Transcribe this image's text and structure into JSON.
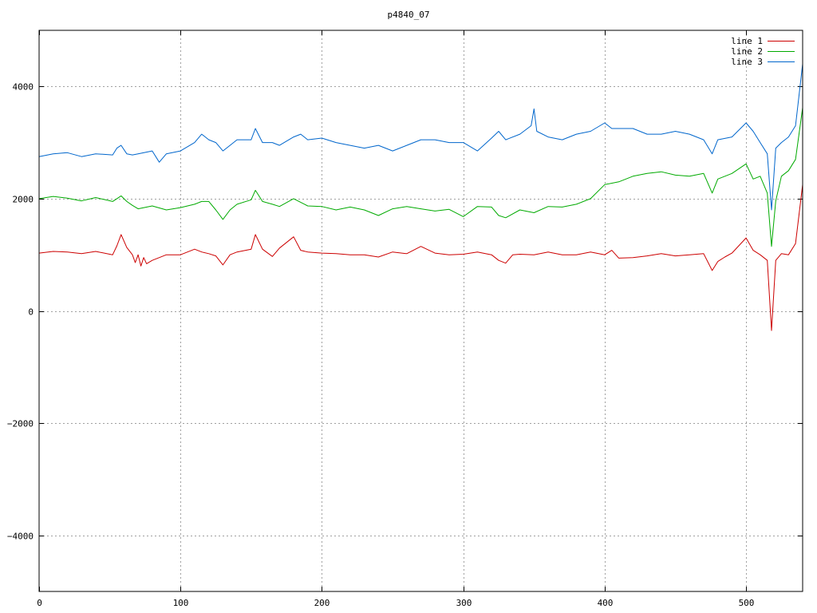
{
  "chart_data": {
    "type": "line",
    "title": "p4840_07",
    "xlabel": "",
    "ylabel": "",
    "xlim": [
      0,
      540
    ],
    "ylim": [
      -5000,
      5000
    ],
    "xticks": [
      0,
      100,
      200,
      300,
      400,
      500
    ],
    "yticks": [
      -4000,
      -2000,
      0,
      2000,
      4000
    ],
    "grid": true,
    "legend_position": "top-right",
    "series": [
      {
        "name": "line 1",
        "color": "#cc0000",
        "x": [
          0,
          10,
          20,
          30,
          40,
          52,
          55,
          58,
          62,
          66,
          68,
          70,
          72,
          74,
          76,
          80,
          90,
          100,
          110,
          115,
          120,
          125,
          130,
          135,
          140,
          150,
          153,
          158,
          165,
          170,
          180,
          185,
          190,
          200,
          210,
          220,
          230,
          240,
          250,
          260,
          270,
          280,
          290,
          300,
          310,
          320,
          325,
          330,
          335,
          340,
          350,
          360,
          370,
          380,
          390,
          400,
          405,
          410,
          420,
          430,
          440,
          450,
          460,
          470,
          476,
          480,
          485,
          490,
          500,
          505,
          510,
          515,
          518,
          521,
          525,
          530,
          535,
          540
        ],
        "y": [
          1030,
          1060,
          1050,
          1020,
          1060,
          1000,
          1160,
          1360,
          1130,
          1000,
          860,
          1000,
          800,
          950,
          840,
          900,
          1000,
          1000,
          1100,
          1050,
          1020,
          980,
          820,
          1000,
          1050,
          1100,
          1360,
          1100,
          970,
          1120,
          1320,
          1080,
          1050,
          1030,
          1020,
          1000,
          1000,
          960,
          1050,
          1020,
          1150,
          1030,
          1000,
          1010,
          1050,
          1000,
          900,
          850,
          1000,
          1010,
          1000,
          1050,
          1000,
          1000,
          1050,
          1000,
          1080,
          940,
          950,
          980,
          1020,
          980,
          1000,
          1020,
          720,
          880,
          960,
          1030,
          1300,
          1080,
          1000,
          900,
          -350,
          900,
          1020,
          1000,
          1200,
          2250
        ]
      },
      {
        "name": "line 2",
        "color": "#00aa00",
        "x": [
          0,
          10,
          20,
          30,
          40,
          52,
          55,
          58,
          62,
          66,
          70,
          80,
          90,
          100,
          110,
          115,
          120,
          125,
          130,
          135,
          140,
          150,
          153,
          158,
          165,
          170,
          180,
          190,
          200,
          210,
          220,
          230,
          240,
          250,
          260,
          270,
          280,
          290,
          300,
          310,
          320,
          325,
          330,
          340,
          350,
          360,
          370,
          380,
          390,
          400,
          410,
          420,
          430,
          440,
          450,
          460,
          470,
          476,
          480,
          490,
          500,
          505,
          510,
          515,
          518,
          521,
          525,
          530,
          535,
          540
        ],
        "y": [
          2000,
          2040,
          2010,
          1960,
          2020,
          1950,
          2000,
          2050,
          1950,
          1880,
          1820,
          1870,
          1800,
          1840,
          1900,
          1950,
          1950,
          1800,
          1630,
          1800,
          1900,
          1980,
          2150,
          1950,
          1900,
          1860,
          2000,
          1870,
          1860,
          1800,
          1850,
          1800,
          1700,
          1820,
          1860,
          1820,
          1780,
          1810,
          1680,
          1860,
          1850,
          1700,
          1660,
          1800,
          1750,
          1860,
          1850,
          1900,
          2000,
          2250,
          2300,
          2400,
          2450,
          2480,
          2420,
          2400,
          2450,
          2100,
          2350,
          2450,
          2620,
          2350,
          2400,
          2100,
          1150,
          1960,
          2400,
          2500,
          2700,
          3620
        ]
      },
      {
        "name": "line 3",
        "color": "#0066cc",
        "x": [
          0,
          10,
          20,
          30,
          40,
          52,
          55,
          58,
          62,
          66,
          70,
          80,
          85,
          90,
          100,
          110,
          115,
          120,
          125,
          130,
          135,
          140,
          150,
          153,
          158,
          165,
          170,
          180,
          185,
          190,
          200,
          210,
          220,
          230,
          240,
          250,
          260,
          270,
          280,
          290,
          300,
          310,
          320,
          325,
          330,
          340,
          348,
          350,
          352,
          360,
          370,
          380,
          390,
          400,
          405,
          410,
          420,
          430,
          440,
          450,
          460,
          470,
          476,
          480,
          490,
          500,
          505,
          510,
          515,
          518,
          521,
          525,
          530,
          535,
          540
        ],
        "y": [
          2750,
          2800,
          2820,
          2750,
          2800,
          2780,
          2900,
          2950,
          2800,
          2780,
          2800,
          2850,
          2650,
          2800,
          2850,
          3000,
          3150,
          3050,
          3000,
          2850,
          2950,
          3050,
          3050,
          3250,
          3000,
          3000,
          2950,
          3100,
          3150,
          3050,
          3080,
          3000,
          2950,
          2900,
          2950,
          2850,
          2950,
          3050,
          3050,
          3000,
          3000,
          2850,
          3080,
          3200,
          3050,
          3150,
          3300,
          3600,
          3200,
          3100,
          3050,
          3150,
          3200,
          3350,
          3250,
          3250,
          3250,
          3150,
          3150,
          3200,
          3150,
          3050,
          2800,
          3050,
          3100,
          3350,
          3200,
          3000,
          2800,
          1800,
          2900,
          3000,
          3100,
          3300,
          4400
        ]
      }
    ]
  }
}
